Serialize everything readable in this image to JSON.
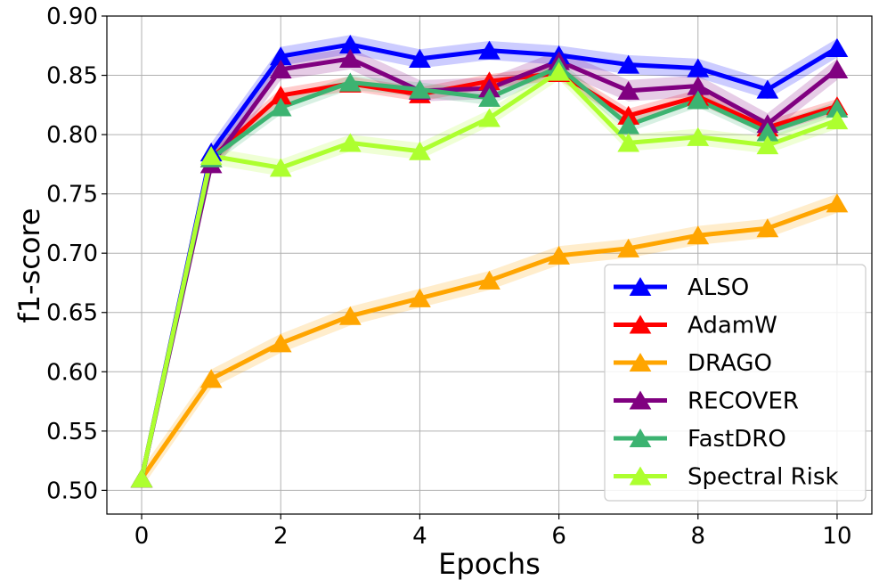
{
  "chart_data": {
    "type": "line",
    "title": "",
    "xlabel": "Epochs",
    "ylabel": "f1-score",
    "xlim": [
      -0.5,
      10.5
    ],
    "ylim": [
      0.48,
      0.9
    ],
    "xticks": [
      0,
      2,
      4,
      6,
      8,
      10
    ],
    "xtick_labels": [
      "0",
      "2",
      "4",
      "6",
      "8",
      "10"
    ],
    "yticks": [
      0.5,
      0.55,
      0.6,
      0.65,
      0.7,
      0.75,
      0.8,
      0.85,
      0.9
    ],
    "ytick_labels": [
      "0.50",
      "0.55",
      "0.60",
      "0.65",
      "0.70",
      "0.75",
      "0.80",
      "0.85",
      "0.90"
    ],
    "grid": true,
    "legend_position": "lower-right",
    "x": [
      0,
      1,
      2,
      3,
      4,
      5,
      6,
      7,
      8,
      9,
      10
    ],
    "series": [
      {
        "name": "ALSO",
        "color": "#0000ff",
        "band": 0.008,
        "values": [
          0.51,
          0.785,
          0.866,
          0.876,
          0.864,
          0.871,
          0.867,
          0.859,
          0.856,
          0.838,
          0.873
        ]
      },
      {
        "name": "AdamW",
        "color": "#ff0000",
        "band": 0.006,
        "values": [
          0.51,
          0.78,
          0.833,
          0.843,
          0.834,
          0.845,
          0.852,
          0.816,
          0.832,
          0.806,
          0.824
        ]
      },
      {
        "name": "DRAGO",
        "color": "#ffa500",
        "band": 0.008,
        "values": [
          0.51,
          0.594,
          0.624,
          0.647,
          0.662,
          0.677,
          0.698,
          0.704,
          0.715,
          0.721,
          0.742
        ]
      },
      {
        "name": "RECOVER",
        "color": "#800080",
        "band": 0.009,
        "values": [
          0.51,
          0.775,
          0.855,
          0.864,
          0.837,
          0.839,
          0.862,
          0.837,
          0.841,
          0.809,
          0.855
        ]
      },
      {
        "name": "FastDRO",
        "color": "#3cb371",
        "band": 0.006,
        "values": [
          0.51,
          0.78,
          0.823,
          0.844,
          0.838,
          0.831,
          0.857,
          0.808,
          0.829,
          0.802,
          0.822
        ]
      },
      {
        "name": "Spectral Risk",
        "color": "#adff2f",
        "band": 0.007,
        "values": [
          0.51,
          0.782,
          0.772,
          0.793,
          0.786,
          0.814,
          0.853,
          0.793,
          0.798,
          0.791,
          0.812
        ]
      }
    ]
  }
}
